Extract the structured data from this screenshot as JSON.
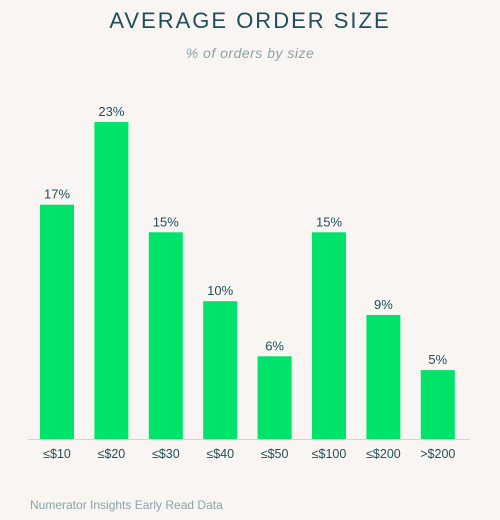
{
  "header": {
    "title": "AVERAGE ORDER SIZE",
    "subtitle": "% of orders by size"
  },
  "footer": {
    "source": "Numerator Insights Early Read Data"
  },
  "colors": {
    "bar": "#00e36a",
    "label": "#1f4f5a",
    "tick": "#1f4f5a",
    "baseline": "#c9d9d6"
  },
  "chart_data": {
    "type": "bar",
    "title": "AVERAGE ORDER SIZE",
    "subtitle": "% of orders by size",
    "categories": [
      "≤$10",
      "≤$20",
      "≤$30",
      "≤$40",
      "≤$50",
      "≤$100",
      "≤$200",
      ">$200"
    ],
    "values": [
      17,
      23,
      15,
      10,
      6,
      15,
      9,
      5
    ],
    "value_labels": [
      "17%",
      "23%",
      "15%",
      "10%",
      "6%",
      "15%",
      "9%",
      "5%"
    ],
    "unit": "%",
    "xlabel": "",
    "ylabel": "",
    "ylim": [
      0,
      23
    ],
    "grid": false,
    "legend": "none"
  }
}
